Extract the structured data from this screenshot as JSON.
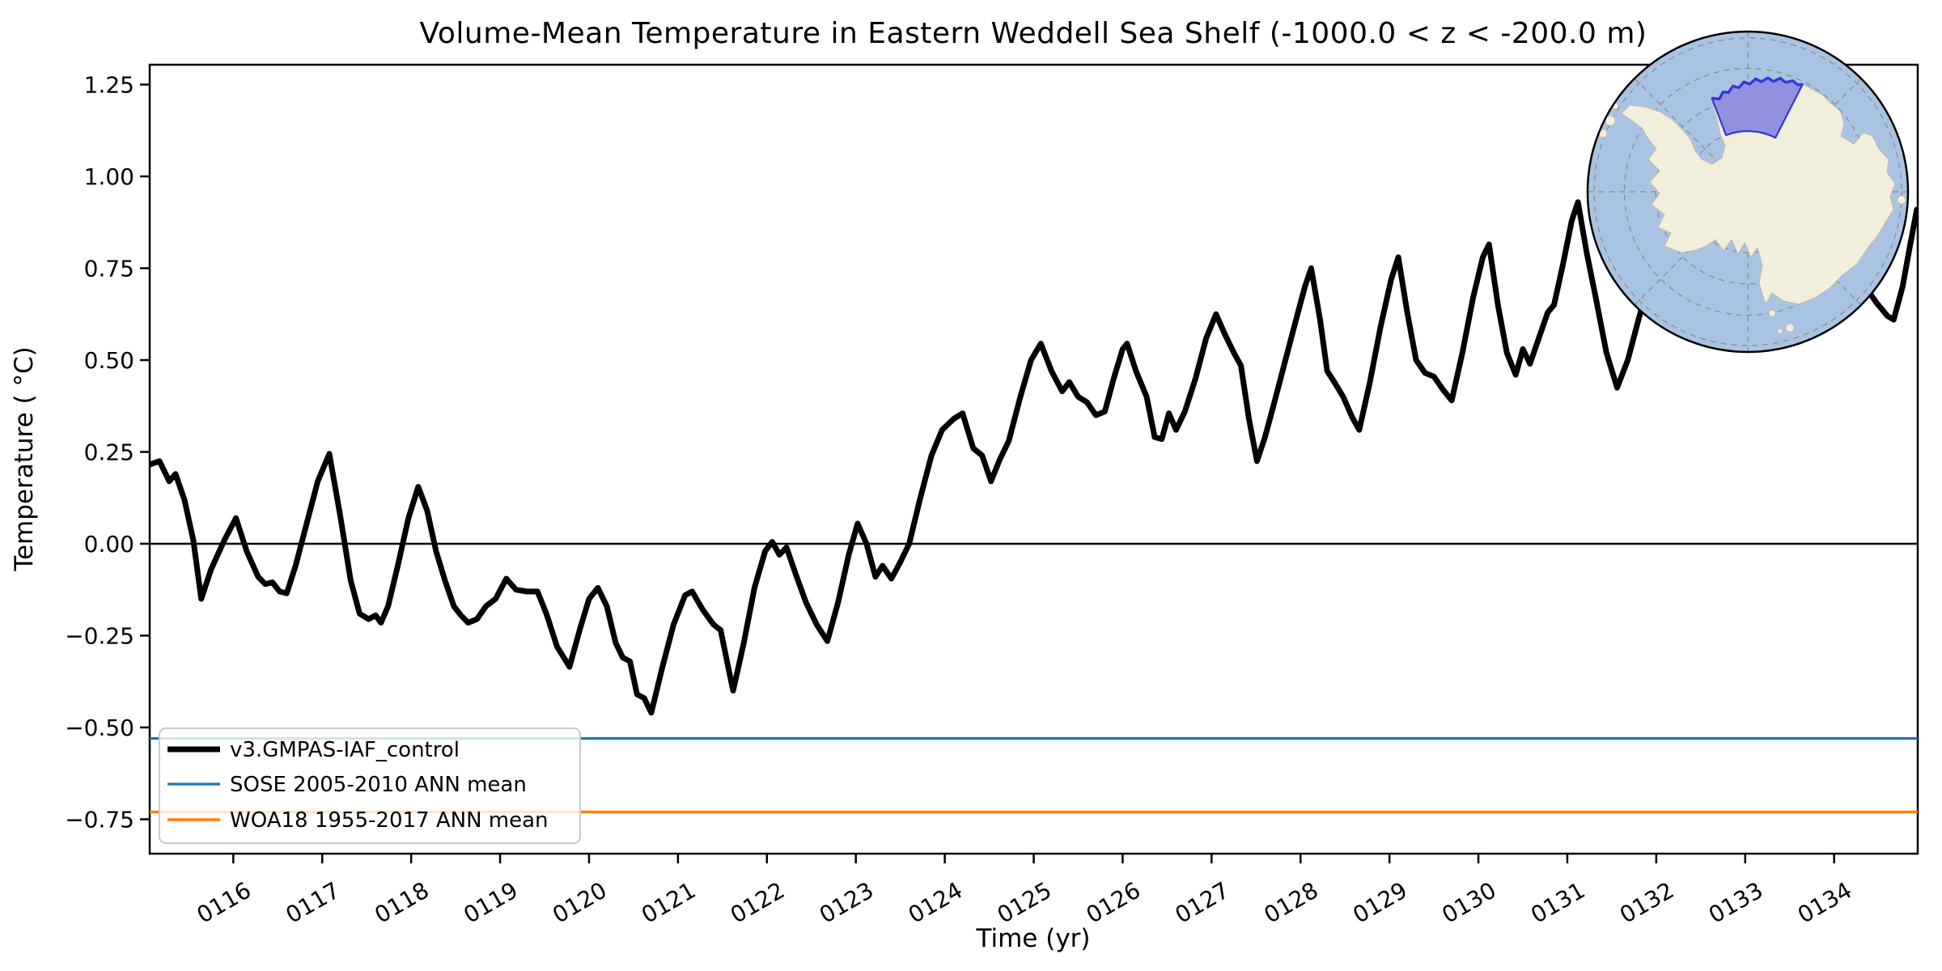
{
  "title": "Volume-Mean Temperature in Eastern Weddell Sea Shelf (-1000.0 < z < -200.0 m)",
  "xlabel": "Time (yr)",
  "ylabel": "Temperature ( °C)",
  "legend": [
    {
      "label": "v3.GMPAS-IAF_control",
      "color": "#000000",
      "lw": 7
    },
    {
      "label": "SOSE 2005-2010 ANN mean",
      "color": "#1f77b4",
      "lw": 3.2
    },
    {
      "label": "WOA18 1955-2017 ANN mean",
      "color": "#ff7f0e",
      "lw": 3.4
    }
  ],
  "colors": {
    "series_main": "#000000",
    "series_sose": "#1f77b4",
    "series_woa18": "#ff7f0e",
    "zero_line": "#000000",
    "axes": "#000000",
    "legend_border": "#cccccc"
  },
  "inset_map": {
    "highlighted_region": "Eastern Weddell Sea Shelf",
    "ocean_color": "#a9c4e3",
    "land_color": "#f1efdc",
    "region_fill": "#6e6ce0",
    "region_border": "#3434d8",
    "graticule_color": "#8a8a8a",
    "outline_color": "#000000"
  },
  "chart_data": {
    "type": "line",
    "title": "Volume-Mean Temperature in Eastern Weddell Sea Shelf (-1000.0 < z < -200.0 m)",
    "xlabel": "Time (yr)",
    "ylabel": "Temperature ( °C)",
    "xlim": [
      115.06,
      134.94
    ],
    "ylim": [
      -0.84,
      1.3
    ],
    "grid": false,
    "legend_position": "lower left",
    "xticks": {
      "values": [
        116,
        117,
        118,
        119,
        120,
        121,
        122,
        123,
        124,
        125,
        126,
        127,
        128,
        129,
        130,
        131,
        132,
        133,
        134
      ],
      "labels": [
        "0116",
        "0117",
        "0118",
        "0119",
        "0120",
        "0121",
        "0122",
        "0123",
        "0124",
        "0125",
        "0126",
        "0127",
        "0128",
        "0129",
        "0130",
        "0131",
        "0132",
        "0133",
        "0134"
      ],
      "rotation_deg": 30
    },
    "yticks": {
      "values": [
        1.25,
        1.0,
        0.75,
        0.5,
        0.25,
        0.0,
        -0.25,
        -0.5,
        -0.75
      ],
      "labels": [
        "1.25",
        "1.00",
        "0.75",
        "0.50",
        "0.25",
        "0.00",
        "−0.25",
        "−0.50",
        "−0.75"
      ]
    },
    "reference_lines": [
      {
        "name": "zero",
        "value": 0.0,
        "color": "#000000",
        "lw": 2.5
      },
      {
        "name": "SOSE 2005-2010 ANN mean",
        "value": -0.53,
        "color": "#1f77b4",
        "lw": 3.2
      },
      {
        "name": "WOA18 1955-2017 ANN mean",
        "value": -0.73,
        "color": "#ff7f0e",
        "lw": 3.4
      }
    ],
    "series": [
      {
        "name": "v3.GMPAS-IAF_control",
        "color": "#000000",
        "lw": 7,
        "units": {
          "x": "model year",
          "y": "degC"
        },
        "points": [
          [
            115.05,
            0.215
          ],
          [
            115.17,
            0.225
          ],
          [
            115.28,
            0.17
          ],
          [
            115.35,
            0.19
          ],
          [
            115.45,
            0.12
          ],
          [
            115.55,
            0.01
          ],
          [
            115.64,
            -0.15
          ],
          [
            115.75,
            -0.07
          ],
          [
            115.9,
            0.01
          ],
          [
            116.03,
            0.07
          ],
          [
            116.15,
            -0.02
          ],
          [
            116.28,
            -0.09
          ],
          [
            116.36,
            -0.11
          ],
          [
            116.44,
            -0.105
          ],
          [
            116.52,
            -0.13
          ],
          [
            116.6,
            -0.135
          ],
          [
            116.7,
            -0.06
          ],
          [
            116.82,
            0.05
          ],
          [
            116.95,
            0.17
          ],
          [
            117.08,
            0.245
          ],
          [
            117.2,
            0.08
          ],
          [
            117.32,
            -0.1
          ],
          [
            117.42,
            -0.19
          ],
          [
            117.52,
            -0.205
          ],
          [
            117.6,
            -0.195
          ],
          [
            117.66,
            -0.215
          ],
          [
            117.74,
            -0.17
          ],
          [
            117.85,
            -0.06
          ],
          [
            117.97,
            0.07
          ],
          [
            118.08,
            0.155
          ],
          [
            118.18,
            0.09
          ],
          [
            118.28,
            -0.02
          ],
          [
            118.38,
            -0.1
          ],
          [
            118.48,
            -0.17
          ],
          [
            118.56,
            -0.195
          ],
          [
            118.64,
            -0.215
          ],
          [
            118.74,
            -0.205
          ],
          [
            118.84,
            -0.17
          ],
          [
            118.95,
            -0.15
          ],
          [
            119.07,
            -0.095
          ],
          [
            119.18,
            -0.125
          ],
          [
            119.3,
            -0.13
          ],
          [
            119.42,
            -0.13
          ],
          [
            119.52,
            -0.19
          ],
          [
            119.64,
            -0.28
          ],
          [
            119.78,
            -0.335
          ],
          [
            119.9,
            -0.23
          ],
          [
            120.0,
            -0.15
          ],
          [
            120.1,
            -0.12
          ],
          [
            120.2,
            -0.17
          ],
          [
            120.3,
            -0.27
          ],
          [
            120.38,
            -0.31
          ],
          [
            120.46,
            -0.32
          ],
          [
            120.54,
            -0.41
          ],
          [
            120.62,
            -0.42
          ],
          [
            120.7,
            -0.46
          ],
          [
            120.82,
            -0.34
          ],
          [
            120.95,
            -0.22
          ],
          [
            121.08,
            -0.14
          ],
          [
            121.16,
            -0.13
          ],
          [
            121.28,
            -0.18
          ],
          [
            121.4,
            -0.22
          ],
          [
            121.48,
            -0.235
          ],
          [
            121.56,
            -0.33
          ],
          [
            121.62,
            -0.4
          ],
          [
            121.74,
            -0.27
          ],
          [
            121.86,
            -0.12
          ],
          [
            121.98,
            -0.02
          ],
          [
            122.06,
            0.005
          ],
          [
            122.14,
            -0.03
          ],
          [
            122.22,
            -0.01
          ],
          [
            122.32,
            -0.08
          ],
          [
            122.44,
            -0.16
          ],
          [
            122.56,
            -0.22
          ],
          [
            122.68,
            -0.265
          ],
          [
            122.8,
            -0.16
          ],
          [
            122.92,
            -0.03
          ],
          [
            123.02,
            0.055
          ],
          [
            123.12,
            0.0
          ],
          [
            123.22,
            -0.09
          ],
          [
            123.3,
            -0.06
          ],
          [
            123.4,
            -0.095
          ],
          [
            123.5,
            -0.05
          ],
          [
            123.6,
            0.0
          ],
          [
            123.72,
            0.12
          ],
          [
            123.85,
            0.24
          ],
          [
            123.97,
            0.31
          ],
          [
            124.1,
            0.34
          ],
          [
            124.2,
            0.355
          ],
          [
            124.32,
            0.26
          ],
          [
            124.42,
            0.24
          ],
          [
            124.52,
            0.17
          ],
          [
            124.62,
            0.23
          ],
          [
            124.72,
            0.28
          ],
          [
            124.85,
            0.4
          ],
          [
            124.97,
            0.5
          ],
          [
            125.08,
            0.545
          ],
          [
            125.2,
            0.47
          ],
          [
            125.32,
            0.415
          ],
          [
            125.4,
            0.44
          ],
          [
            125.5,
            0.4
          ],
          [
            125.6,
            0.385
          ],
          [
            125.7,
            0.35
          ],
          [
            125.8,
            0.36
          ],
          [
            125.9,
            0.45
          ],
          [
            126.0,
            0.53
          ],
          [
            126.05,
            0.545
          ],
          [
            126.15,
            0.47
          ],
          [
            126.27,
            0.4
          ],
          [
            126.36,
            0.29
          ],
          [
            126.44,
            0.285
          ],
          [
            126.52,
            0.355
          ],
          [
            126.6,
            0.31
          ],
          [
            126.7,
            0.36
          ],
          [
            126.82,
            0.45
          ],
          [
            126.94,
            0.56
          ],
          [
            127.05,
            0.625
          ],
          [
            127.15,
            0.57
          ],
          [
            127.25,
            0.52
          ],
          [
            127.33,
            0.485
          ],
          [
            127.42,
            0.34
          ],
          [
            127.51,
            0.225
          ],
          [
            127.6,
            0.29
          ],
          [
            127.7,
            0.38
          ],
          [
            127.82,
            0.49
          ],
          [
            127.95,
            0.61
          ],
          [
            128.05,
            0.7
          ],
          [
            128.12,
            0.75
          ],
          [
            128.22,
            0.61
          ],
          [
            128.3,
            0.47
          ],
          [
            128.38,
            0.44
          ],
          [
            128.48,
            0.4
          ],
          [
            128.58,
            0.345
          ],
          [
            128.66,
            0.31
          ],
          [
            128.78,
            0.44
          ],
          [
            128.9,
            0.59
          ],
          [
            129.02,
            0.72
          ],
          [
            129.1,
            0.78
          ],
          [
            129.2,
            0.63
          ],
          [
            129.3,
            0.5
          ],
          [
            129.4,
            0.465
          ],
          [
            129.5,
            0.455
          ],
          [
            129.6,
            0.42
          ],
          [
            129.7,
            0.39
          ],
          [
            129.82,
            0.52
          ],
          [
            129.94,
            0.67
          ],
          [
            130.05,
            0.78
          ],
          [
            130.12,
            0.815
          ],
          [
            130.22,
            0.65
          ],
          [
            130.32,
            0.52
          ],
          [
            130.42,
            0.46
          ],
          [
            130.5,
            0.53
          ],
          [
            130.58,
            0.49
          ],
          [
            130.68,
            0.56
          ],
          [
            130.78,
            0.63
          ],
          [
            130.85,
            0.65
          ],
          [
            130.95,
            0.76
          ],
          [
            131.05,
            0.88
          ],
          [
            131.12,
            0.93
          ],
          [
            131.22,
            0.79
          ],
          [
            131.32,
            0.67
          ],
          [
            131.44,
            0.52
          ],
          [
            131.56,
            0.425
          ],
          [
            131.68,
            0.5
          ],
          [
            131.8,
            0.61
          ],
          [
            131.95,
            0.74
          ],
          [
            132.08,
            0.85
          ],
          [
            132.2,
            0.73
          ],
          [
            132.35,
            0.62
          ],
          [
            132.5,
            0.56
          ],
          [
            132.65,
            0.61
          ],
          [
            132.8,
            0.71
          ],
          [
            132.95,
            0.83
          ],
          [
            133.08,
            0.88
          ],
          [
            133.2,
            0.75
          ],
          [
            133.35,
            0.64
          ],
          [
            133.5,
            0.6
          ],
          [
            133.65,
            0.67
          ],
          [
            133.8,
            0.77
          ],
          [
            133.95,
            0.87
          ],
          [
            134.08,
            0.91
          ],
          [
            134.2,
            0.79
          ],
          [
            134.35,
            0.7
          ],
          [
            134.48,
            0.655
          ],
          [
            134.6,
            0.62
          ],
          [
            134.67,
            0.61
          ],
          [
            134.77,
            0.7
          ],
          [
            134.86,
            0.82
          ],
          [
            134.93,
            0.91
          ]
        ]
      },
      {
        "name": "SOSE 2005-2010 ANN mean",
        "color": "#1f77b4",
        "type": "hline",
        "value": -0.53
      },
      {
        "name": "WOA18 1955-2017 ANN mean",
        "color": "#ff7f0e",
        "type": "hline",
        "value": -0.73
      }
    ]
  }
}
